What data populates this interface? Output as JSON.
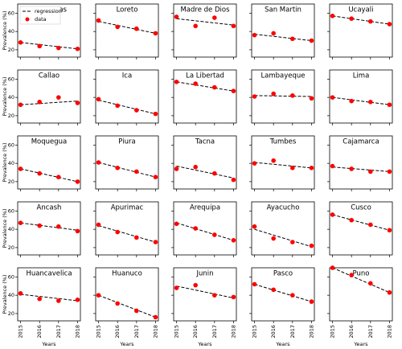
{
  "chart_data": [
    {
      "type": "scatter",
      "title": "Amazonas",
      "y_label": "Prevalence (%)",
      "legend": "upper left",
      "x": [
        2015,
        2016,
        2017,
        2018
      ],
      "series": [
        {
          "name": "regression",
          "color": "#000000",
          "x": [
            2015,
            2018
          ],
          "values": [
            28,
            21
          ]
        },
        {
          "name": "data",
          "color": "#ff0000",
          "values": [
            28,
            24,
            22,
            21
          ]
        }
      ],
      "xlim": [
        2014.85,
        2018.15
      ],
      "ylim": [
        12,
        70
      ],
      "xticks": [
        2015,
        2016,
        2017,
        2018
      ],
      "yticks": [
        20,
        40,
        60
      ]
    },
    {
      "type": "scatter",
      "title": "Loreto",
      "x": [
        2015,
        2016,
        2017,
        2018
      ],
      "series": [
        {
          "color": "#000000",
          "x": [
            2015,
            2018
          ],
          "values": [
            51,
            38
          ]
        },
        {
          "color": "#ff0000",
          "values": [
            52,
            45,
            43,
            38
          ]
        }
      ],
      "xlim": [
        2014.85,
        2018.15
      ],
      "ylim": [
        12,
        70
      ],
      "xticks": [
        2015,
        2016,
        2017,
        2018
      ],
      "yticks": [
        20,
        40,
        60
      ]
    },
    {
      "type": "scatter",
      "title": "Madre de Dios",
      "x": [
        2015,
        2016,
        2017,
        2018
      ],
      "series": [
        {
          "color": "#000000",
          "x": [
            2015,
            2018
          ],
          "values": [
            54,
            47
          ]
        },
        {
          "color": "#ff0000",
          "values": [
            56,
            46,
            55,
            46
          ]
        }
      ],
      "xlim": [
        2014.85,
        2018.15
      ],
      "ylim": [
        12,
        70
      ],
      "xticks": [
        2015,
        2016,
        2017,
        2018
      ],
      "yticks": [
        20,
        40,
        60
      ]
    },
    {
      "type": "scatter",
      "title": "San Martin",
      "x": [
        2015,
        2016,
        2017,
        2018
      ],
      "series": [
        {
          "color": "#000000",
          "x": [
            2015,
            2018
          ],
          "values": [
            37,
            30
          ]
        },
        {
          "color": "#ff0000",
          "values": [
            36,
            38,
            32,
            30
          ]
        }
      ],
      "xlim": [
        2014.85,
        2018.15
      ],
      "ylim": [
        12,
        70
      ],
      "xticks": [
        2015,
        2016,
        2017,
        2018
      ],
      "yticks": [
        20,
        40,
        60
      ]
    },
    {
      "type": "scatter",
      "title": "Ucayali",
      "x": [
        2015,
        2016,
        2017,
        2018
      ],
      "series": [
        {
          "color": "#000000",
          "x": [
            2015,
            2018
          ],
          "values": [
            57,
            48
          ]
        },
        {
          "color": "#ff0000",
          "values": [
            57,
            54,
            51,
            48
          ]
        }
      ],
      "xlim": [
        2014.85,
        2018.15
      ],
      "ylim": [
        12,
        70
      ],
      "xticks": [
        2015,
        2016,
        2017,
        2018
      ],
      "yticks": [
        20,
        40,
        60
      ]
    },
    {
      "type": "scatter",
      "title": "Callao",
      "y_label": "Prevalence (%)",
      "x": [
        2015,
        2016,
        2017,
        2018
      ],
      "series": [
        {
          "color": "#000000",
          "x": [
            2015,
            2018
          ],
          "values": [
            32,
            36
          ]
        },
        {
          "color": "#ff0000",
          "values": [
            32,
            35,
            40,
            34
          ]
        }
      ],
      "xlim": [
        2014.85,
        2018.15
      ],
      "ylim": [
        12,
        70
      ],
      "xticks": [
        2015,
        2016,
        2017,
        2018
      ],
      "yticks": [
        20,
        40,
        60
      ]
    },
    {
      "type": "scatter",
      "title": "Ica",
      "x": [
        2015,
        2016,
        2017,
        2018
      ],
      "series": [
        {
          "color": "#000000",
          "x": [
            2015,
            2018
          ],
          "values": [
            37,
            22
          ]
        },
        {
          "color": "#ff0000",
          "values": [
            38,
            31,
            26,
            22
          ]
        }
      ],
      "xlim": [
        2014.85,
        2018.15
      ],
      "ylim": [
        12,
        70
      ],
      "xticks": [
        2015,
        2016,
        2017,
        2018
      ],
      "yticks": [
        20,
        40,
        60
      ]
    },
    {
      "type": "scatter",
      "title": "La Libertad",
      "x": [
        2015,
        2016,
        2017,
        2018
      ],
      "series": [
        {
          "color": "#000000",
          "x": [
            2015,
            2018
          ],
          "values": [
            57,
            47
          ]
        },
        {
          "color": "#ff0000",
          "values": [
            57,
            55,
            51,
            47
          ]
        }
      ],
      "xlim": [
        2014.85,
        2018.15
      ],
      "ylim": [
        12,
        70
      ],
      "xticks": [
        2015,
        2016,
        2017,
        2018
      ],
      "yticks": [
        20,
        40,
        60
      ]
    },
    {
      "type": "scatter",
      "title": "Lambayeque",
      "x": [
        2015,
        2016,
        2017,
        2018
      ],
      "series": [
        {
          "color": "#000000",
          "x": [
            2015,
            2018
          ],
          "values": [
            42,
            41
          ]
        },
        {
          "color": "#ff0000",
          "values": [
            41,
            44,
            42,
            39
          ]
        }
      ],
      "xlim": [
        2014.85,
        2018.15
      ],
      "ylim": [
        12,
        70
      ],
      "xticks": [
        2015,
        2016,
        2017,
        2018
      ],
      "yticks": [
        20,
        40,
        60
      ]
    },
    {
      "type": "scatter",
      "title": "Lima",
      "x": [
        2015,
        2016,
        2017,
        2018
      ],
      "series": [
        {
          "color": "#000000",
          "x": [
            2015,
            2018
          ],
          "values": [
            40,
            32
          ]
        },
        {
          "color": "#ff0000",
          "values": [
            40,
            36,
            35,
            32
          ]
        }
      ],
      "xlim": [
        2014.85,
        2018.15
      ],
      "ylim": [
        12,
        70
      ],
      "xticks": [
        2015,
        2016,
        2017,
        2018
      ],
      "yticks": [
        20,
        40,
        60
      ]
    },
    {
      "type": "scatter",
      "title": "Moquegua",
      "y_label": "Prevalence (%)",
      "x": [
        2015,
        2016,
        2017,
        2018
      ],
      "series": [
        {
          "color": "#000000",
          "x": [
            2015,
            2018
          ],
          "values": [
            34,
            20
          ]
        },
        {
          "color": "#ff0000",
          "values": [
            34,
            29,
            25,
            20
          ]
        }
      ],
      "xlim": [
        2014.85,
        2018.15
      ],
      "ylim": [
        12,
        70
      ],
      "xticks": [
        2015,
        2016,
        2017,
        2018
      ],
      "yticks": [
        20,
        40,
        60
      ]
    },
    {
      "type": "scatter",
      "title": "Piura",
      "x": [
        2015,
        2016,
        2017,
        2018
      ],
      "series": [
        {
          "color": "#000000",
          "x": [
            2015,
            2018
          ],
          "values": [
            41,
            25
          ]
        },
        {
          "color": "#ff0000",
          "values": [
            41,
            35,
            31,
            25
          ]
        }
      ],
      "xlim": [
        2014.85,
        2018.15
      ],
      "ylim": [
        12,
        70
      ],
      "xticks": [
        2015,
        2016,
        2017,
        2018
      ],
      "yticks": [
        20,
        40,
        60
      ]
    },
    {
      "type": "scatter",
      "title": "Tacna",
      "x": [
        2015,
        2016,
        2017,
        2018
      ],
      "series": [
        {
          "color": "#000000",
          "x": [
            2015,
            2018
          ],
          "values": [
            37,
            24
          ]
        },
        {
          "color": "#ff0000",
          "values": [
            34,
            36,
            29,
            22
          ]
        }
      ],
      "xlim": [
        2014.85,
        2018.15
      ],
      "ylim": [
        12,
        70
      ],
      "xticks": [
        2015,
        2016,
        2017,
        2018
      ],
      "yticks": [
        20,
        40,
        60
      ]
    },
    {
      "type": "scatter",
      "title": "Tumbes",
      "x": [
        2015,
        2016,
        2017,
        2018
      ],
      "series": [
        {
          "color": "#000000",
          "x": [
            2015,
            2018
          ],
          "values": [
            41,
            35
          ]
        },
        {
          "color": "#ff0000",
          "values": [
            40,
            43,
            35,
            35
          ]
        }
      ],
      "xlim": [
        2014.85,
        2018.15
      ],
      "ylim": [
        12,
        70
      ],
      "xticks": [
        2015,
        2016,
        2017,
        2018
      ],
      "yticks": [
        20,
        40,
        60
      ]
    },
    {
      "type": "scatter",
      "title": "Cajamarca",
      "x": [
        2015,
        2016,
        2017,
        2018
      ],
      "series": [
        {
          "color": "#000000",
          "x": [
            2015,
            2018
          ],
          "values": [
            36,
            31
          ]
        },
        {
          "color": "#ff0000",
          "values": [
            37,
            34,
            31,
            31
          ]
        }
      ],
      "xlim": [
        2014.85,
        2018.15
      ],
      "ylim": [
        12,
        70
      ],
      "xticks": [
        2015,
        2016,
        2017,
        2018
      ],
      "yticks": [
        20,
        40,
        60
      ]
    },
    {
      "type": "scatter",
      "title": "Ancash",
      "y_label": "Prevalence (%)",
      "x": [
        2015,
        2016,
        2017,
        2018
      ],
      "series": [
        {
          "color": "#000000",
          "x": [
            2015,
            2018
          ],
          "values": [
            47,
            39
          ]
        },
        {
          "color": "#ff0000",
          "values": [
            47,
            44,
            43,
            38
          ]
        }
      ],
      "xlim": [
        2014.85,
        2018.15
      ],
      "ylim": [
        12,
        70
      ],
      "xticks": [
        2015,
        2016,
        2017,
        2018
      ],
      "yticks": [
        20,
        40,
        60
      ]
    },
    {
      "type": "scatter",
      "title": "Apurimac",
      "x": [
        2015,
        2016,
        2017,
        2018
      ],
      "series": [
        {
          "color": "#000000",
          "x": [
            2015,
            2018
          ],
          "values": [
            44,
            26
          ]
        },
        {
          "color": "#ff0000",
          "values": [
            45,
            37,
            31,
            26
          ]
        }
      ],
      "xlim": [
        2014.85,
        2018.15
      ],
      "ylim": [
        12,
        70
      ],
      "xticks": [
        2015,
        2016,
        2017,
        2018
      ],
      "yticks": [
        20,
        40,
        60
      ]
    },
    {
      "type": "scatter",
      "title": "Arequipa",
      "x": [
        2015,
        2016,
        2017,
        2018
      ],
      "series": [
        {
          "color": "#000000",
          "x": [
            2015,
            2018
          ],
          "values": [
            47,
            28
          ]
        },
        {
          "color": "#ff0000",
          "values": [
            46,
            41,
            34,
            28
          ]
        }
      ],
      "xlim": [
        2014.85,
        2018.15
      ],
      "ylim": [
        12,
        70
      ],
      "xticks": [
        2015,
        2016,
        2017,
        2018
      ],
      "yticks": [
        20,
        40,
        60
      ]
    },
    {
      "type": "scatter",
      "title": "Ayacucho",
      "x": [
        2015,
        2016,
        2017,
        2018
      ],
      "series": [
        {
          "color": "#000000",
          "x": [
            2015,
            2018
          ],
          "values": [
            40,
            21
          ]
        },
        {
          "color": "#ff0000",
          "values": [
            43,
            30,
            26,
            22
          ]
        }
      ],
      "xlim": [
        2014.85,
        2018.15
      ],
      "ylim": [
        12,
        70
      ],
      "xticks": [
        2015,
        2016,
        2017,
        2018
      ],
      "yticks": [
        20,
        40,
        60
      ]
    },
    {
      "type": "scatter",
      "title": "Cusco",
      "x": [
        2015,
        2016,
        2017,
        2018
      ],
      "series": [
        {
          "color": "#000000",
          "x": [
            2015,
            2018
          ],
          "values": [
            56,
            39
          ]
        },
        {
          "color": "#ff0000",
          "values": [
            56,
            50,
            45,
            39
          ]
        }
      ],
      "xlim": [
        2014.85,
        2018.15
      ],
      "ylim": [
        12,
        70
      ],
      "xticks": [
        2015,
        2016,
        2017,
        2018
      ],
      "yticks": [
        20,
        40,
        60
      ]
    },
    {
      "type": "scatter",
      "title": "Huancavelica",
      "y_label": "Prevalence (%)",
      "x_label": "Years",
      "x": [
        2015,
        2016,
        2017,
        2018
      ],
      "series": [
        {
          "color": "#000000",
          "x": [
            2015,
            2018
          ],
          "values": [
            41,
            34
          ]
        },
        {
          "color": "#ff0000",
          "values": [
            42,
            36,
            34,
            35
          ]
        }
      ],
      "xlim": [
        2014.85,
        2018.15
      ],
      "ylim": [
        12,
        70
      ],
      "xticks": [
        2015,
        2016,
        2017,
        2018
      ],
      "yticks": [
        20,
        40,
        60
      ]
    },
    {
      "type": "scatter",
      "title": "Huanuco",
      "x_label": "Years",
      "x": [
        2015,
        2016,
        2017,
        2018
      ],
      "series": [
        {
          "color": "#000000",
          "x": [
            2015,
            2018
          ],
          "values": [
            40,
            16
          ]
        },
        {
          "color": "#ff0000",
          "values": [
            40,
            31,
            23,
            16
          ]
        }
      ],
      "xlim": [
        2014.85,
        2018.15
      ],
      "ylim": [
        12,
        70
      ],
      "xticks": [
        2015,
        2016,
        2017,
        2018
      ],
      "yticks": [
        20,
        40,
        60
      ]
    },
    {
      "type": "scatter",
      "title": "Junin",
      "x_label": "Years",
      "x": [
        2015,
        2016,
        2017,
        2018
      ],
      "series": [
        {
          "color": "#000000",
          "x": [
            2015,
            2018
          ],
          "values": [
            50,
            37
          ]
        },
        {
          "color": "#ff0000",
          "values": [
            48,
            51,
            40,
            38
          ]
        }
      ],
      "xlim": [
        2014.85,
        2018.15
      ],
      "ylim": [
        12,
        70
      ],
      "xticks": [
        2015,
        2016,
        2017,
        2018
      ],
      "yticks": [
        20,
        40,
        60
      ]
    },
    {
      "type": "scatter",
      "title": "Pasco",
      "x_label": "Years",
      "x": [
        2015,
        2016,
        2017,
        2018
      ],
      "series": [
        {
          "color": "#000000",
          "x": [
            2015,
            2018
          ],
          "values": [
            52,
            33
          ]
        },
        {
          "color": "#ff0000",
          "values": [
            52,
            46,
            40,
            33
          ]
        }
      ],
      "xlim": [
        2014.85,
        2018.15
      ],
      "ylim": [
        12,
        70
      ],
      "xticks": [
        2015,
        2016,
        2017,
        2018
      ],
      "yticks": [
        20,
        40,
        60
      ]
    },
    {
      "type": "scatter",
      "title": "Puno",
      "x_label": "Years",
      "x": [
        2015,
        2016,
        2017,
        2018
      ],
      "series": [
        {
          "color": "#000000",
          "x": [
            2015,
            2018
          ],
          "values": [
            70,
            43
          ]
        },
        {
          "color": "#ff0000",
          "values": [
            70,
            62,
            53,
            43
          ]
        }
      ],
      "xlim": [
        2014.85,
        2018.15
      ],
      "ylim": [
        12,
        70
      ],
      "xticks": [
        2015,
        2016,
        2017,
        2018
      ],
      "yticks": [
        20,
        40,
        60
      ]
    }
  ]
}
